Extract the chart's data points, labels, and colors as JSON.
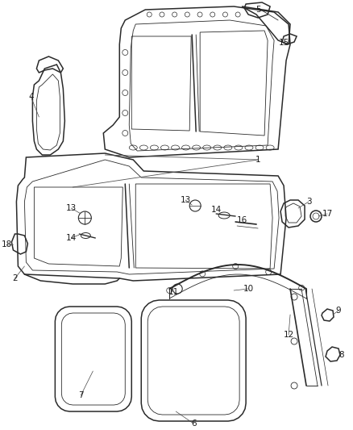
{
  "bg_color": "#ffffff",
  "line_color": "#2a2a2a",
  "label_color": "#1a1a1a",
  "figsize": [
    4.38,
    5.33
  ],
  "dpi": 100,
  "lw_main": 1.1,
  "lw_thin": 0.6,
  "lw_inner": 0.5
}
